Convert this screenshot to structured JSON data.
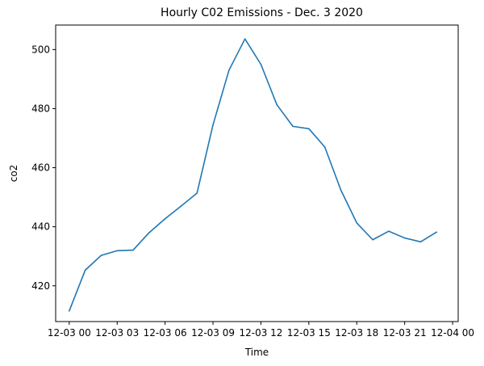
{
  "chart_data": {
    "type": "line",
    "title": "Hourly C02 Emissions - Dec. 3 2020",
    "xlabel": "Time",
    "ylabel": "co2",
    "x": [
      "12-03 00",
      "12-03 01",
      "12-03 02",
      "12-03 03",
      "12-03 04",
      "12-03 05",
      "12-03 06",
      "12-03 07",
      "12-03 08",
      "12-03 09",
      "12-03 10",
      "12-03 11",
      "12-03 12",
      "12-03 13",
      "12-03 14",
      "12-03 15",
      "12-03 16",
      "12-03 17",
      "12-03 18",
      "12-03 19",
      "12-03 20",
      "12-03 21",
      "12-03 22",
      "12-03 23"
    ],
    "series": [
      {
        "name": "",
        "color": "#1f77b4",
        "values": [
          411.5,
          425.3,
          430.3,
          431.9,
          432.1,
          438.0,
          442.7,
          447.0,
          451.4,
          474.5,
          493.0,
          503.6,
          495.0,
          481.3,
          474.0,
          473.2,
          467.0,
          452.5,
          441.3,
          435.6,
          438.5,
          436.2,
          434.9,
          438.2
        ]
      }
    ],
    "xticks": [
      "12-03 00",
      "12-03 03",
      "12-03 06",
      "12-03 09",
      "12-03 12",
      "12-03 15",
      "12-03 18",
      "12-03 21",
      "12-04 00"
    ],
    "xtick_hours": [
      0,
      3,
      6,
      9,
      12,
      15,
      18,
      21,
      24
    ],
    "xlim_hours": [
      -0.85,
      24.35
    ],
    "yticks": [
      420,
      440,
      460,
      480,
      500
    ],
    "ylim": [
      407.9,
      508.3
    ],
    "grid": false,
    "legend": "none"
  }
}
